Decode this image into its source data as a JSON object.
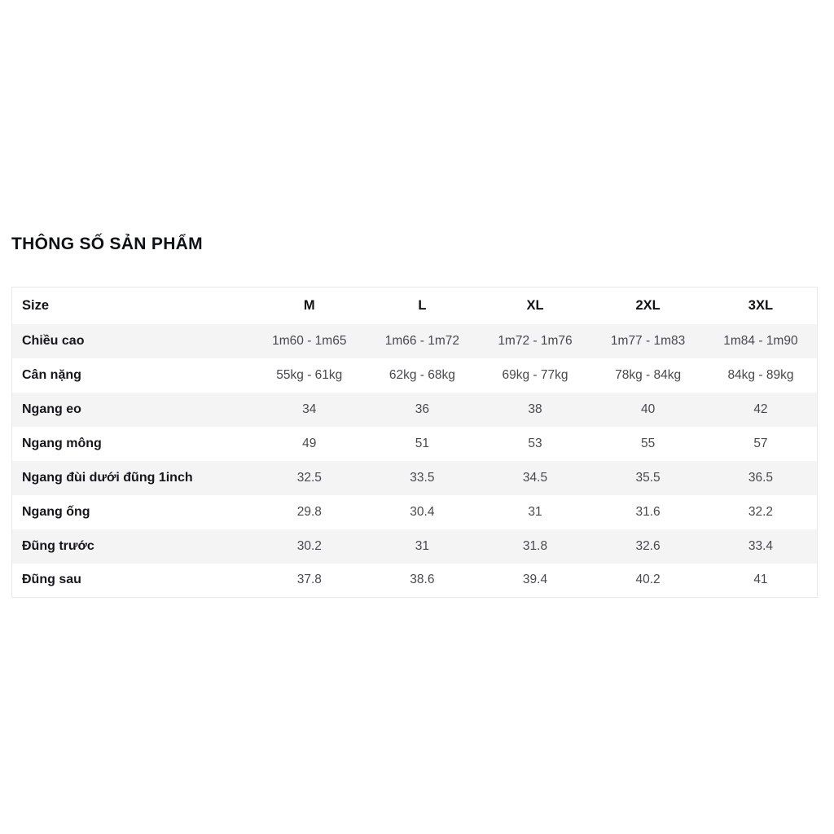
{
  "chart_data": {
    "type": "table",
    "title": "THÔNG SỐ SẢN PHẨM",
    "columns": [
      "Size",
      "M",
      "L",
      "XL",
      "2XL",
      "3XL"
    ],
    "rows": [
      {
        "label": "Chiều cao",
        "values": [
          "1m60 - 1m65",
          "1m66 - 1m72",
          "1m72 - 1m76",
          "1m77 - 1m83",
          "1m84 - 1m90"
        ]
      },
      {
        "label": "Cân nặng",
        "values": [
          "55kg - 61kg",
          "62kg - 68kg",
          "69kg - 77kg",
          "78kg - 84kg",
          "84kg - 89kg"
        ]
      },
      {
        "label": "Ngang eo",
        "values": [
          "34",
          "36",
          "38",
          "40",
          "42"
        ]
      },
      {
        "label": "Ngang mông",
        "values": [
          "49",
          "51",
          "53",
          "55",
          "57"
        ]
      },
      {
        "label": "Ngang đùi dưới đũng 1inch",
        "values": [
          "32.5",
          "33.5",
          "34.5",
          "35.5",
          "36.5"
        ]
      },
      {
        "label": "Ngang ống",
        "values": [
          "29.8",
          "30.4",
          "31",
          "31.6",
          "32.2"
        ]
      },
      {
        "label": "Đũng trước",
        "values": [
          "30.2",
          "31",
          "31.8",
          "32.6",
          "33.4"
        ]
      },
      {
        "label": "Đũng sau",
        "values": [
          "37.8",
          "38.6",
          "39.4",
          "40.2",
          "41"
        ]
      }
    ],
    "layout": {
      "legend": "none",
      "grid": "row-stripes",
      "stripe_rows": [
        0,
        2,
        4,
        6
      ]
    }
  },
  "colors": {
    "background": "#ffffff",
    "stripe": "#f4f4f4",
    "border": "#e8e8e8",
    "title_text": "#0e1116",
    "label_text": "#15171c",
    "value_text": "#47494e"
  }
}
